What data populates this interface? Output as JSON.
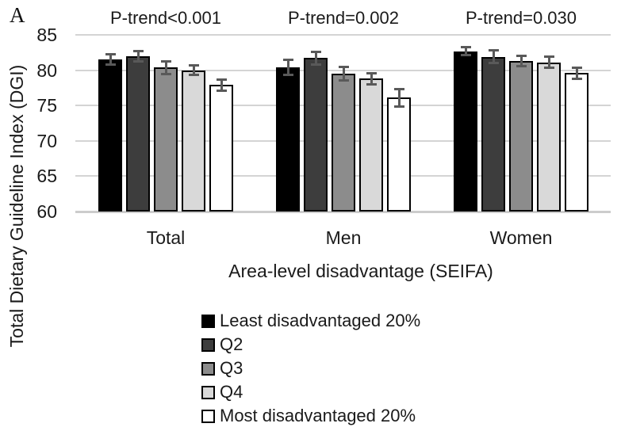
{
  "panel_label": "A",
  "colors": {
    "bar_fills": [
      "#000000",
      "#3d3d3d",
      "#8c8c8c",
      "#d9d9d9",
      "#ffffff"
    ],
    "bar_border": "#000000",
    "error_bar": "#595959",
    "gridline": "#d4d4d4",
    "text": "#1a1a1a"
  },
  "chart_data": {
    "type": "bar",
    "title": "",
    "ylabel": "Total Dietary Guideline Index (DGI)",
    "xlabel": "Area-level disadvantage (SEIFA)",
    "ylim": [
      60,
      85
    ],
    "yticks": [
      60,
      65,
      70,
      75,
      80,
      85
    ],
    "grid": true,
    "legend_position": "bottom-left",
    "categories": [
      "Total",
      "Men",
      "Women"
    ],
    "group_annotations": [
      "P-trend<0.001",
      "P-trend=0.002",
      "P-trend=0.030"
    ],
    "series": [
      {
        "name": "Least disadvantaged 20%",
        "values": [
          81.5,
          80.4,
          82.7
        ],
        "errors": [
          0.7,
          1.1,
          0.6
        ]
      },
      {
        "name": "Q2",
        "values": [
          82.0,
          81.7,
          81.9
        ],
        "errors": [
          0.7,
          0.9,
          0.9
        ]
      },
      {
        "name": "Q3",
        "values": [
          80.4,
          79.5,
          81.3
        ],
        "errors": [
          0.9,
          1.0,
          0.7
        ]
      },
      {
        "name": "Q4",
        "values": [
          80.0,
          78.8,
          81.1
        ],
        "errors": [
          0.7,
          0.8,
          0.8
        ]
      },
      {
        "name": "Most disadvantaged 20%",
        "values": [
          77.9,
          76.1,
          79.6
        ],
        "errors": [
          0.8,
          1.2,
          0.8
        ]
      }
    ]
  }
}
